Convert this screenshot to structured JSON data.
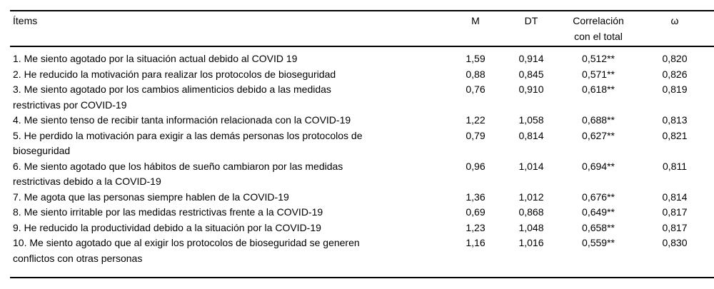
{
  "page": {
    "background": "#ffffff",
    "text_color": "#000000",
    "rule_color": "#000000"
  },
  "table": {
    "columns": [
      {
        "key": "item",
        "label": "Ítems"
      },
      {
        "key": "m",
        "label": "M"
      },
      {
        "key": "dt",
        "label": "DT"
      },
      {
        "key": "corr",
        "label": "Correlación\ncon el total"
      },
      {
        "key": "omega",
        "label": "ω"
      }
    ],
    "rows": [
      {
        "item": "1. Me siento agotado por la situación actual debido al COVID 19",
        "m": "1,59",
        "dt": "0,914",
        "corr": "0,512**",
        "omega": "0,820"
      },
      {
        "item": "2. He reducido la motivación para realizar los protocolos de bioseguridad",
        "m": "0,88",
        "dt": "0,845",
        "corr": "0,571**",
        "omega": "0,826"
      },
      {
        "item": "3. Me siento agotado por los cambios alimenticios debido a las medidas\nrestrictivas por COVID-19",
        "m": "0,76",
        "dt": "0,910",
        "corr": "0,618**",
        "omega": "0,819"
      },
      {
        "item": "4. Me siento tenso de recibir tanta información relacionada con la COVID-19",
        "m": "1,22",
        "dt": "1,058",
        "corr": "0,688**",
        "omega": "0,813"
      },
      {
        "item": "5. He perdido la motivación para exigir a las demás personas los protocolos de\nbioseguridad",
        "m": "0,79",
        "dt": "0,814",
        "corr": "0,627**",
        "omega": "0,821"
      },
      {
        "item": "6. Me siento agotado que los hábitos de sueño cambiaron por las medidas\nrestrictivas debido a la COVID-19",
        "m": "0,96",
        "dt": "1,014",
        "corr": "0,694**",
        "omega": "0,811"
      },
      {
        "item": "7. Me agota que las personas siempre hablen de la COVID-19",
        "m": "1,36",
        "dt": "1,012",
        "corr": "0,676**",
        "omega": "0,814"
      },
      {
        "item": "8. Me siento irritable por las medidas restrictivas frente a la COVID-19",
        "m": "0,69",
        "dt": "0,868",
        "corr": "0,649**",
        "omega": "0,817"
      },
      {
        "item": "9. He reducido la productividad debido a la situación por la COVID-19",
        "m": "1,23",
        "dt": "1,048",
        "corr": "0,658**",
        "omega": "0,817"
      },
      {
        "item": "10. Me siento agotado que al exigir los protocolos de bioseguridad se generen\nconflictos con otras personas",
        "m": "1,16",
        "dt": "1,016",
        "corr": "0,559**",
        "omega": "0,830"
      }
    ]
  }
}
